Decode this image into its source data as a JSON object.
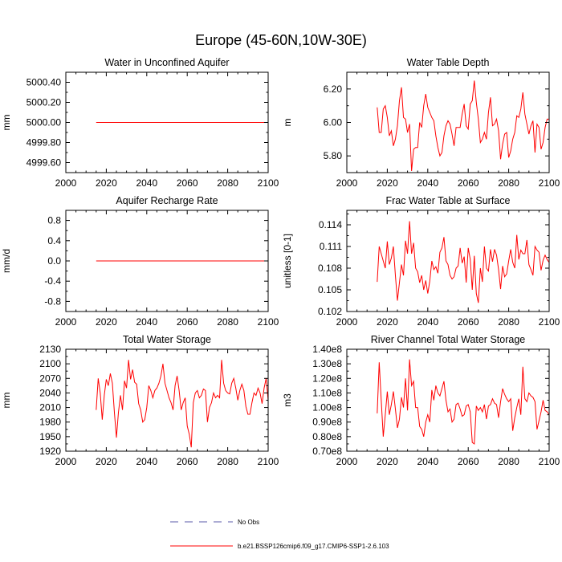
{
  "figure": {
    "title": "Europe (45-60N,10W-30E)"
  },
  "legend": {
    "entries": [
      {
        "label": "No Obs",
        "style": "dashed",
        "color": "#5a5aa8"
      },
      {
        "label": "b.e21.BSSP126cmip6.f09_g17.CMIP6-SSP1-2.6.103",
        "style": "solid",
        "color": "#ff0000"
      }
    ]
  },
  "chart_data": [
    {
      "type": "line",
      "title": "Water in Unconfined Aquifer",
      "ylabel": "mm",
      "xlabel": "",
      "xlim": [
        2000,
        2100
      ],
      "ylim": [
        4999.5,
        5000.5
      ],
      "xticks": [
        2000,
        2020,
        2040,
        2060,
        2080,
        2100
      ],
      "xtick_labels": [
        "2000",
        "2020",
        "2040",
        "2060",
        "2080",
        "2100"
      ],
      "yticks": [
        4999.6,
        4999.8,
        5000.0,
        5000.2,
        5000.4
      ],
      "ytick_labels": [
        "4999.60",
        "4999.80",
        "5000.00",
        "5000.20",
        "5000.40"
      ],
      "series": [
        {
          "name": "b.e21.BSSP126cmip6.f09_g17.CMIP6-SSP1-2.6.103",
          "color": "#ff0000",
          "x": [
            2015,
            2100
          ],
          "values": [
            5000.0,
            5000.0
          ]
        }
      ]
    },
    {
      "type": "line",
      "title": "Water Table Depth",
      "ylabel": "m",
      "xlabel": "",
      "xlim": [
        2000,
        2100
      ],
      "ylim": [
        5.7,
        6.3
      ],
      "xticks": [
        2000,
        2020,
        2040,
        2060,
        2080,
        2100
      ],
      "xtick_labels": [
        "2000",
        "2020",
        "2040",
        "2060",
        "2080",
        "2100"
      ],
      "yticks": [
        5.8,
        6.0,
        6.2
      ],
      "ytick_labels": [
        "5.80",
        "6.00",
        "6.20"
      ],
      "series": [
        {
          "name": "b.e21.BSSP126cmip6.f09_g17.CMIP6-SSP1-2.6.103",
          "color": "#ff0000",
          "x_start": 2015,
          "x_step": 1,
          "values": [
            6.09,
            5.94,
            5.94,
            6.08,
            6.1,
            6.03,
            5.92,
            5.95,
            5.86,
            5.9,
            5.98,
            6.13,
            6.21,
            6.03,
            6.02,
            5.94,
            5.99,
            5.71,
            5.84,
            5.85,
            5.85,
            6.0,
            5.97,
            6.1,
            6.17,
            6.09,
            6.06,
            6.03,
            6.01,
            5.92,
            5.85,
            5.8,
            5.82,
            5.92,
            5.98,
            6.01,
            5.99,
            5.93,
            5.86,
            5.97,
            5.97,
            5.97,
            6.05,
            6.11,
            5.98,
            5.96,
            6.11,
            6.13,
            6.25,
            6.12,
            6.02,
            5.88,
            5.9,
            5.94,
            5.9,
            6.06,
            6.15,
            5.98,
            5.99,
            6.02,
            5.95,
            5.78,
            5.87,
            5.93,
            5.94,
            5.79,
            5.83,
            5.9,
            5.94,
            6.04,
            6.03,
            6.08,
            6.18,
            6.05,
            5.99,
            5.93,
            5.98,
            6.01,
            5.82,
            5.99,
            5.97,
            5.84,
            5.88,
            5.97,
            6.02,
            6.02
          ]
        }
      ]
    },
    {
      "type": "line",
      "title": "Aquifer Recharge Rate",
      "ylabel": "mm/d",
      "xlabel": "",
      "xlim": [
        2000,
        2100
      ],
      "ylim": [
        -1.0,
        1.0
      ],
      "xticks": [
        2000,
        2020,
        2040,
        2060,
        2080,
        2100
      ],
      "xtick_labels": [
        "2000",
        "2020",
        "2040",
        "2060",
        "2080",
        "2100"
      ],
      "yticks": [
        -0.8,
        -0.4,
        0.0,
        0.4,
        0.8
      ],
      "ytick_labels": [
        "-0.8",
        "-0.4",
        "0.0",
        "0.4",
        "0.8"
      ],
      "series": [
        {
          "name": "b.e21.BSSP126cmip6.f09_g17.CMIP6-SSP1-2.6.103",
          "color": "#ff0000",
          "x": [
            2015,
            2100
          ],
          "values": [
            0.0,
            0.0
          ]
        }
      ]
    },
    {
      "type": "line",
      "title": "Frac Water Table at Surface",
      "ylabel": "unitless [0-1]",
      "xlabel": "",
      "xlim": [
        2000,
        2100
      ],
      "ylim": [
        0.102,
        0.116
      ],
      "xticks": [
        2000,
        2020,
        2040,
        2060,
        2080,
        2100
      ],
      "xtick_labels": [
        "2000",
        "2020",
        "2040",
        "2060",
        "2080",
        "2100"
      ],
      "yticks": [
        0.102,
        0.105,
        0.108,
        0.111,
        0.114
      ],
      "ytick_labels": [
        "0.102",
        "0.105",
        "0.108",
        "0.111",
        "0.114"
      ],
      "series": [
        {
          "name": "b.e21.BSSP126cmip6.f09_g17.CMIP6-SSP1-2.6.103",
          "color": "#ff0000",
          "x_start": 2015,
          "x_step": 1,
          "values": [
            0.1061,
            0.111,
            0.11,
            0.109,
            0.108,
            0.1117,
            0.1085,
            0.1094,
            0.111,
            0.107,
            0.1035,
            0.106,
            0.1085,
            0.107,
            0.1118,
            0.11,
            0.1145,
            0.11,
            0.1115,
            0.108,
            0.1075,
            0.106,
            0.107,
            0.105,
            0.1063,
            0.1045,
            0.1062,
            0.109,
            0.1078,
            0.1082,
            0.1073,
            0.1102,
            0.1108,
            0.1123,
            0.109,
            0.1085,
            0.107,
            0.1065,
            0.1068,
            0.108,
            0.1083,
            0.1108,
            0.1087,
            0.1096,
            0.106,
            0.1108,
            0.1092,
            0.105,
            0.1097,
            0.1045,
            0.1032,
            0.108,
            0.1061,
            0.111,
            0.108,
            0.1076,
            0.1106,
            0.1089,
            0.1106,
            0.1098,
            0.1078,
            0.1051,
            0.1083,
            0.1068,
            0.1072,
            0.109,
            0.1106,
            0.1088,
            0.108,
            0.1126,
            0.1092,
            0.1105,
            0.11,
            0.11,
            0.1119,
            0.1085,
            0.1078,
            0.107,
            0.111,
            0.1105,
            0.1102,
            0.1077,
            0.1091,
            0.1098,
            0.1092,
            0.1088
          ]
        }
      ]
    },
    {
      "type": "line",
      "title": "Total Water Storage",
      "ylabel": "mm",
      "xlabel": "",
      "xlim": [
        2000,
        2100
      ],
      "ylim": [
        1920,
        2130
      ],
      "xticks": [
        2000,
        2020,
        2040,
        2060,
        2080,
        2100
      ],
      "xtick_labels": [
        "2000",
        "2020",
        "2040",
        "2060",
        "2080",
        "2100"
      ],
      "yticks": [
        1920,
        1950,
        1980,
        2010,
        2040,
        2070,
        2100,
        2130
      ],
      "ytick_labels": [
        "1920",
        "1950",
        "1980",
        "2010",
        "2040",
        "2070",
        "2100",
        "2130"
      ],
      "series": [
        {
          "name": "b.e21.BSSP126cmip6.f09_g17.CMIP6-SSP1-2.6.103",
          "color": "#ff0000",
          "x_start": 2015,
          "x_step": 1,
          "values": [
            2005,
            2070,
            2040,
            1985,
            2035,
            2068,
            2055,
            2080,
            2060,
            2000,
            1948,
            2000,
            2035,
            2005,
            2065,
            2050,
            2108,
            2068,
            2088,
            2062,
            2058,
            2018,
            2005,
            1980,
            1985,
            2010,
            2055,
            2045,
            2030,
            2045,
            2050,
            2060,
            2075,
            2100,
            2060,
            2045,
            2030,
            2020,
            2005,
            2055,
            2075,
            2045,
            2005,
            2020,
            2030,
            1972,
            1955,
            1928,
            2020,
            2040,
            2045,
            2030,
            2035,
            2048,
            2045,
            1980,
            2010,
            2020,
            2040,
            2030,
            2035,
            2030,
            2108,
            2060,
            2045,
            2040,
            2038,
            2060,
            2070,
            2050,
            2025,
            2045,
            2058,
            2045,
            2012,
            1996,
            1996,
            2020,
            2040,
            2035,
            2050,
            2040,
            2018,
            2050,
            2070,
            2025
          ]
        }
      ]
    },
    {
      "type": "line",
      "title": "River Channel Total Water Storage",
      "ylabel": "m3",
      "xlabel": "",
      "xlim": [
        2000,
        2100
      ],
      "ylim": [
        70000000,
        140000000
      ],
      "xticks": [
        2000,
        2020,
        2040,
        2060,
        2080,
        2100
      ],
      "xtick_labels": [
        "2000",
        "2020",
        "2040",
        "2060",
        "2080",
        "2100"
      ],
      "yticks": [
        70000000,
        80000000,
        90000000,
        100000000,
        110000000,
        120000000,
        130000000,
        140000000
      ],
      "ytick_labels": [
        "0.70e8",
        "0.80e8",
        "0.90e8",
        "1.00e8",
        "1.10e8",
        "1.20e8",
        "1.30e8",
        "1.40e8"
      ],
      "series": [
        {
          "name": "b.e21.BSSP126cmip6.f09_g17.CMIP6-SSP1-2.6.103",
          "color": "#ff0000",
          "x_start": 2015,
          "x_step": 1,
          "values": [
            96000000,
            131000000,
            105000000,
            80000000,
            95000000,
            111000000,
            95000000,
            102000000,
            111000000,
            99000000,
            86000000,
            92000000,
            107000000,
            100000000,
            120000000,
            98000000,
            133000000,
            115000000,
            118000000,
            100000000,
            100000000,
            87000000,
            85000000,
            80000000,
            90000000,
            95000000,
            90000000,
            112000000,
            105000000,
            115000000,
            110000000,
            108000000,
            113000000,
            118000000,
            105000000,
            97000000,
            99000000,
            90000000,
            92000000,
            102000000,
            103000000,
            99000000,
            94000000,
            95000000,
            101000000,
            102000000,
            97000000,
            76000000,
            75000000,
            101000000,
            98000000,
            100000000,
            97000000,
            102000000,
            92000000,
            101000000,
            102000000,
            106000000,
            103000000,
            102000000,
            93000000,
            104000000,
            113000000,
            109000000,
            106000000,
            104000000,
            106000000,
            84000000,
            93000000,
            100000000,
            106000000,
            95000000,
            128000000,
            106000000,
            104000000,
            110000000,
            108000000,
            107000000,
            104000000,
            85000000,
            91000000,
            97000000,
            105000000,
            98000000,
            97000000,
            95000000
          ]
        }
      ]
    }
  ]
}
